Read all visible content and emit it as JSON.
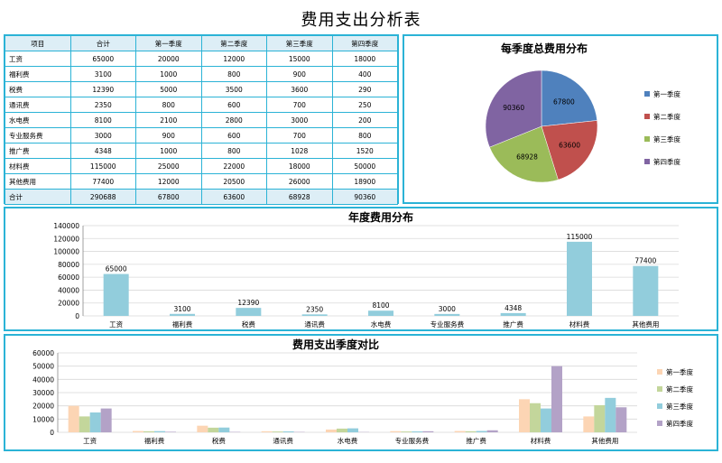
{
  "title": "费用支出分析表",
  "table": {
    "headers": [
      "项目",
      "合计",
      "第一季度",
      "第二季度",
      "第三季度",
      "第四季度"
    ],
    "rows": [
      [
        "工资",
        "65000",
        "20000",
        "12000",
        "15000",
        "18000"
      ],
      [
        "福利费",
        "3100",
        "1000",
        "800",
        "900",
        "400"
      ],
      [
        "税费",
        "12390",
        "5000",
        "3500",
        "3600",
        "290"
      ],
      [
        "通讯费",
        "2350",
        "800",
        "600",
        "700",
        "250"
      ],
      [
        "水电费",
        "8100",
        "2100",
        "2800",
        "3000",
        "200"
      ],
      [
        "专业服务费",
        "3000",
        "900",
        "600",
        "700",
        "800"
      ],
      [
        "推广费",
        "4348",
        "1000",
        "800",
        "1028",
        "1520"
      ],
      [
        "材料费",
        "115000",
        "25000",
        "22000",
        "18000",
        "50000"
      ],
      [
        "其他费用",
        "77400",
        "12000",
        "20500",
        "26000",
        "18900"
      ]
    ],
    "total_row": [
      "合计",
      "290688",
      "67800",
      "63600",
      "68928",
      "90360"
    ]
  },
  "colors": {
    "q1": "#4f81bd",
    "q2": "#c0504d",
    "q3": "#9bbb59",
    "q4": "#8064a2",
    "bar1": "#92cddc",
    "cmp_q1": "#fcd5b4",
    "cmp_q2": "#c3d69b",
    "cmp_q3": "#92cddc",
    "cmp_q4": "#b3a2c7"
  },
  "chart_data": [
    {
      "type": "pie",
      "title": "每季度总费用分布",
      "categories": [
        "第一季度",
        "第二季度",
        "第三季度",
        "第四季度"
      ],
      "values": [
        67800,
        63600,
        68928,
        90360
      ],
      "legend": "right"
    },
    {
      "type": "bar",
      "title": "年度费用分布",
      "categories": [
        "工资",
        "福利费",
        "税费",
        "通讯费",
        "水电费",
        "专业服务费",
        "推广费",
        "材料费",
        "其他费用"
      ],
      "values": [
        65000,
        3100,
        12390,
        2350,
        8100,
        3000,
        4348,
        115000,
        77400
      ],
      "ylim": [
        0,
        140000
      ],
      "yticks": [
        0,
        20000,
        40000,
        60000,
        80000,
        100000,
        120000,
        140000
      ],
      "grid": true
    },
    {
      "type": "bar",
      "title": "费用支出季度对比",
      "categories": [
        "工资",
        "福利费",
        "税费",
        "通讯费",
        "水电费",
        "专业服务费",
        "推广费",
        "材料费",
        "其他费用"
      ],
      "series": [
        {
          "name": "第一季度",
          "values": [
            20000,
            1000,
            5000,
            800,
            2100,
            900,
            1000,
            25000,
            12000
          ]
        },
        {
          "name": "第二季度",
          "values": [
            12000,
            800,
            3500,
            600,
            2800,
            600,
            800,
            22000,
            20500
          ]
        },
        {
          "name": "第三季度",
          "values": [
            15000,
            900,
            3600,
            700,
            3000,
            700,
            1028,
            18000,
            26000
          ]
        },
        {
          "name": "第四季度",
          "values": [
            18000,
            400,
            290,
            250,
            200,
            800,
            1520,
            50000,
            18900
          ]
        }
      ],
      "ylim": [
        0,
        60000
      ],
      "yticks": [
        0,
        10000,
        20000,
        30000,
        40000,
        50000,
        60000
      ],
      "grid": true,
      "legend": "right"
    }
  ]
}
